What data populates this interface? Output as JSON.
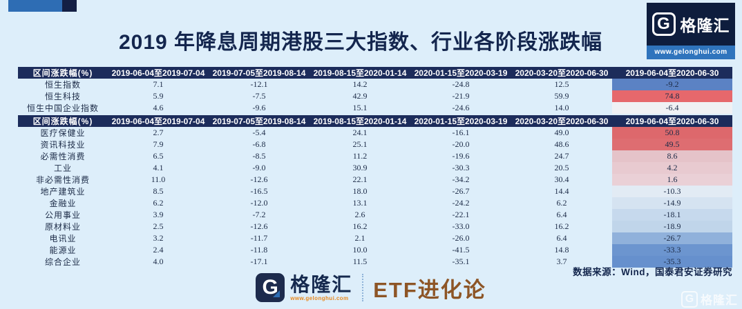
{
  "page": {
    "title": "2019 年降息周期港股三大指数、行业各阶段涨跌幅",
    "source_note": "数据来源：Wind，国泰君安证券研究"
  },
  "brand": {
    "logo_letter": "G",
    "logo_name": "格隆汇",
    "url": "www.gelonghui.com",
    "footer_channel": "ETF进化论"
  },
  "colors": {
    "background": "#ddeefa",
    "header_bg": "#1c2c5b",
    "accent_blue": "#2e6db4",
    "navy": "#131f44",
    "positive_red": "#e6686c",
    "negative_blue": "#5b82c4",
    "channel_brown": "#8d5526"
  },
  "chart_data": [
    {
      "type": "table",
      "title": "港股三大指数各阶段涨跌幅",
      "columns": [
        "区间涨跌幅(%)",
        "2019-06-04至2019-07-04",
        "2019-07-05至2019-08-14",
        "2019-08-15至2020-01-14",
        "2020-01-15至2020-03-19",
        "2020-03-20至2020-06-30",
        "2019-06-04至2020-06-30"
      ],
      "rows": [
        {
          "label": "恒生指数",
          "values": [
            "7.1",
            "-12.1",
            "14.2",
            "-24.8",
            "12.5",
            "-9.2"
          ],
          "final_bg": "#5b82c4"
        },
        {
          "label": "恒生科技",
          "values": [
            "5.9",
            "-7.5",
            "42.9",
            "-21.9",
            "59.9",
            "74.8"
          ],
          "final_bg": "#e6686c"
        },
        {
          "label": "恒生中国企业指数",
          "values": [
            "4.6",
            "-9.6",
            "15.1",
            "-24.6",
            "14.0",
            "-6.4"
          ],
          "final_bg": "#f0f1f4"
        }
      ]
    },
    {
      "type": "table",
      "title": "港股行业各阶段涨跌幅",
      "columns": [
        "区间涨跌幅(%)",
        "2019-06-04至2019-07-04",
        "2019-07-05至2019-08-14",
        "2019-08-15至2020-01-14",
        "2020-01-15至2020-03-19",
        "2020-03-20至2020-06-30",
        "2019-06-04至2020-06-30"
      ],
      "rows": [
        {
          "label": "医疗保健业",
          "values": [
            "2.7",
            "-5.4",
            "24.1",
            "-16.1",
            "49.0",
            "50.8"
          ],
          "final_bg": "#dd686c"
        },
        {
          "label": "资讯科技业",
          "values": [
            "7.9",
            "-6.8",
            "25.1",
            "-20.0",
            "48.6",
            "49.5"
          ],
          "final_bg": "#de6d71"
        },
        {
          "label": "必需性消费",
          "values": [
            "6.5",
            "-8.5",
            "11.2",
            "-19.6",
            "24.7",
            "8.6"
          ],
          "final_bg": "#e5c3c9"
        },
        {
          "label": "工业",
          "values": [
            "4.1",
            "-9.0",
            "30.9",
            "-30.3",
            "20.5",
            "4.2"
          ],
          "final_bg": "#e8cad0"
        },
        {
          "label": "非必需性消费",
          "values": [
            "11.0",
            "-12.6",
            "22.1",
            "-34.2",
            "30.4",
            "1.6"
          ],
          "final_bg": "#ead0d6"
        },
        {
          "label": "地产建筑业",
          "values": [
            "8.5",
            "-16.5",
            "18.0",
            "-26.7",
            "14.4",
            "-10.3"
          ],
          "final_bg": "#e2ebf4"
        },
        {
          "label": "金融业",
          "values": [
            "6.2",
            "-12.0",
            "13.1",
            "-24.2",
            "6.2",
            "-14.9"
          ],
          "final_bg": "#d5e3f1"
        },
        {
          "label": "公用事业",
          "values": [
            "3.9",
            "-7.2",
            "2.6",
            "-22.1",
            "6.4",
            "-18.1"
          ],
          "final_bg": "#c6d9ed"
        },
        {
          "label": "原材料业",
          "values": [
            "2.5",
            "-12.6",
            "16.2",
            "-33.0",
            "16.2",
            "-18.9"
          ],
          "final_bg": "#c0d5ea"
        },
        {
          "label": "电讯业",
          "values": [
            "3.2",
            "-11.7",
            "2.1",
            "-26.0",
            "6.4",
            "-26.7"
          ],
          "final_bg": "#90b1db"
        },
        {
          "label": "能源业",
          "values": [
            "2.4",
            "-11.8",
            "10.0",
            "-41.5",
            "14.8",
            "-33.3"
          ],
          "final_bg": "#6c95cf"
        },
        {
          "label": "综合企业",
          "values": [
            "4.0",
            "-17.1",
            "11.5",
            "-35.1",
            "3.7",
            "-35.3"
          ],
          "final_bg": "#6690cd"
        }
      ]
    }
  ]
}
